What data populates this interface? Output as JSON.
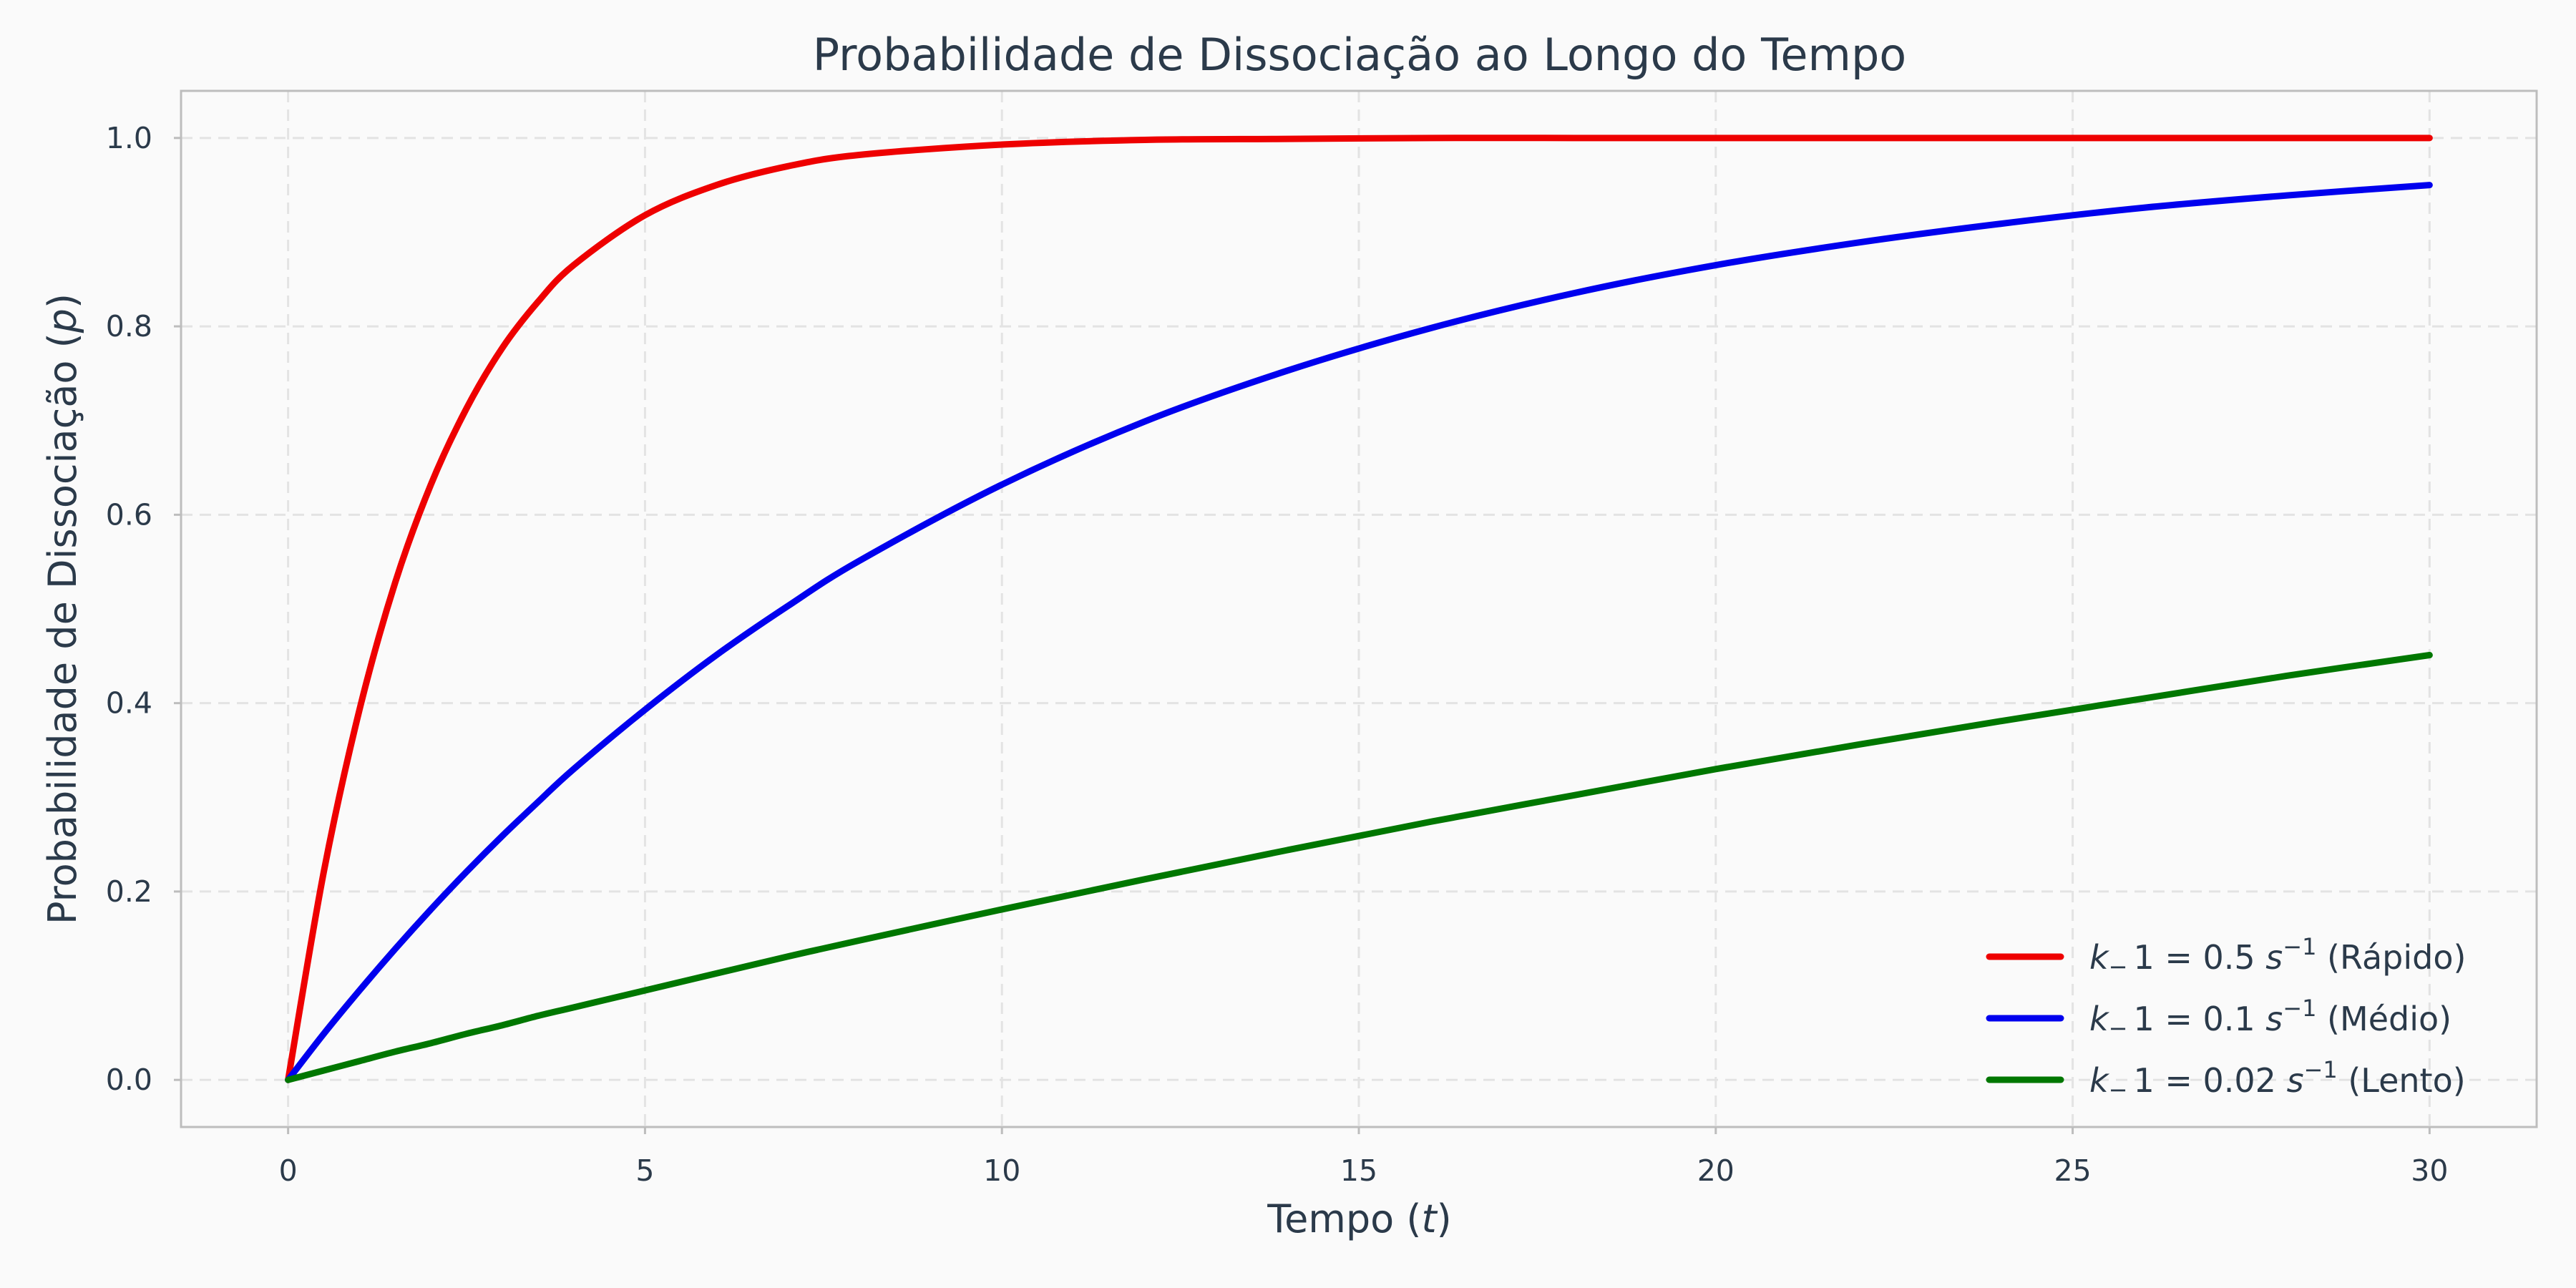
{
  "chart_data": {
    "type": "line",
    "title": "Probabilidade de Dissociação ao Longo do Tempo",
    "xlabel": {
      "prefix": "Tempo (",
      "var": "t",
      "suffix": ")"
    },
    "ylabel": {
      "prefix": "Probabilidade de Dissociação (",
      "var": "p",
      "suffix": ")"
    },
    "xlim": [
      -1.5,
      31.5
    ],
    "ylim": [
      -0.05,
      1.05
    ],
    "xticks": [
      0,
      5,
      10,
      15,
      20,
      25,
      30
    ],
    "yticks": [
      0.0,
      0.2,
      0.4,
      0.6,
      0.8,
      1.0
    ],
    "xtick_labels": [
      "0",
      "5",
      "10",
      "15",
      "20",
      "25",
      "30"
    ],
    "ytick_labels": [
      "0.0",
      "0.2",
      "0.4",
      "0.6",
      "0.8",
      "1.0"
    ],
    "grid": true,
    "legend_position": "lower-right",
    "x": [
      0,
      0.5,
      1,
      1.5,
      2,
      2.5,
      3,
      3.5,
      4,
      5,
      6,
      7,
      8,
      10,
      12,
      14,
      16,
      18,
      20,
      22,
      24,
      26,
      28,
      30
    ],
    "series": [
      {
        "name": {
          "k": "k",
          "sub": "−",
          "eq": "1 = 0.5 ",
          "s": "s",
          "sup": "−1",
          "label": " (Rápido)"
        },
        "color": "#ee0000",
        "values": [
          0,
          0.221,
          0.393,
          0.528,
          0.632,
          0.713,
          0.777,
          0.826,
          0.865,
          0.918,
          0.95,
          0.97,
          0.982,
          0.993,
          0.998,
          0.999,
          1.0,
          1.0,
          1.0,
          1.0,
          1.0,
          1.0,
          1.0,
          1.0
        ]
      },
      {
        "name": {
          "k": "k",
          "sub": "−",
          "eq": "1 = 0.1 ",
          "s": "s",
          "sup": "−1",
          "label": " (Médio)"
        },
        "color": "#0000ee",
        "values": [
          0,
          0.049,
          0.095,
          0.139,
          0.181,
          0.221,
          0.259,
          0.295,
          0.33,
          0.393,
          0.451,
          0.503,
          0.551,
          0.632,
          0.699,
          0.753,
          0.798,
          0.835,
          0.865,
          0.889,
          0.909,
          0.926,
          0.939,
          0.95
        ]
      },
      {
        "name": {
          "k": "k",
          "sub": "−",
          "eq": "1 = 0.02 ",
          "s": "s",
          "sup": "−1",
          "label": " (Lento)"
        },
        "color": "#007700",
        "values": [
          0,
          0.01,
          0.02,
          0.03,
          0.039,
          0.049,
          0.058,
          0.068,
          0.077,
          0.095,
          0.113,
          0.131,
          0.148,
          0.181,
          0.213,
          0.244,
          0.274,
          0.302,
          0.33,
          0.356,
          0.381,
          0.405,
          0.429,
          0.451
        ]
      }
    ]
  }
}
